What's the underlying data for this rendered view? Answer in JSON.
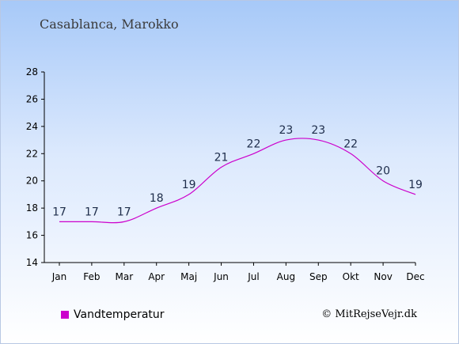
{
  "header": {
    "location": "Casablanca, Marokko"
  },
  "chart_data": {
    "type": "line",
    "categories": [
      "Jan",
      "Feb",
      "Mar",
      "Apr",
      "Maj",
      "Jun",
      "Jul",
      "Aug",
      "Sep",
      "Okt",
      "Nov",
      "Dec"
    ],
    "series": [
      {
        "name": "Vandtemperatur",
        "values": [
          17,
          17,
          17,
          18,
          19,
          21,
          22,
          23,
          23,
          22,
          20,
          19
        ],
        "color": "#cc00cc"
      }
    ],
    "ylim": [
      14,
      28
    ],
    "yticks": [
      14,
      16,
      18,
      20,
      22,
      24,
      26,
      28
    ],
    "grid": false,
    "legend_position": "bottom-left"
  },
  "legend": {
    "label": "Vandtemperatur",
    "color": "#cc00cc"
  },
  "credit": "© MitRejseVejr.dk"
}
